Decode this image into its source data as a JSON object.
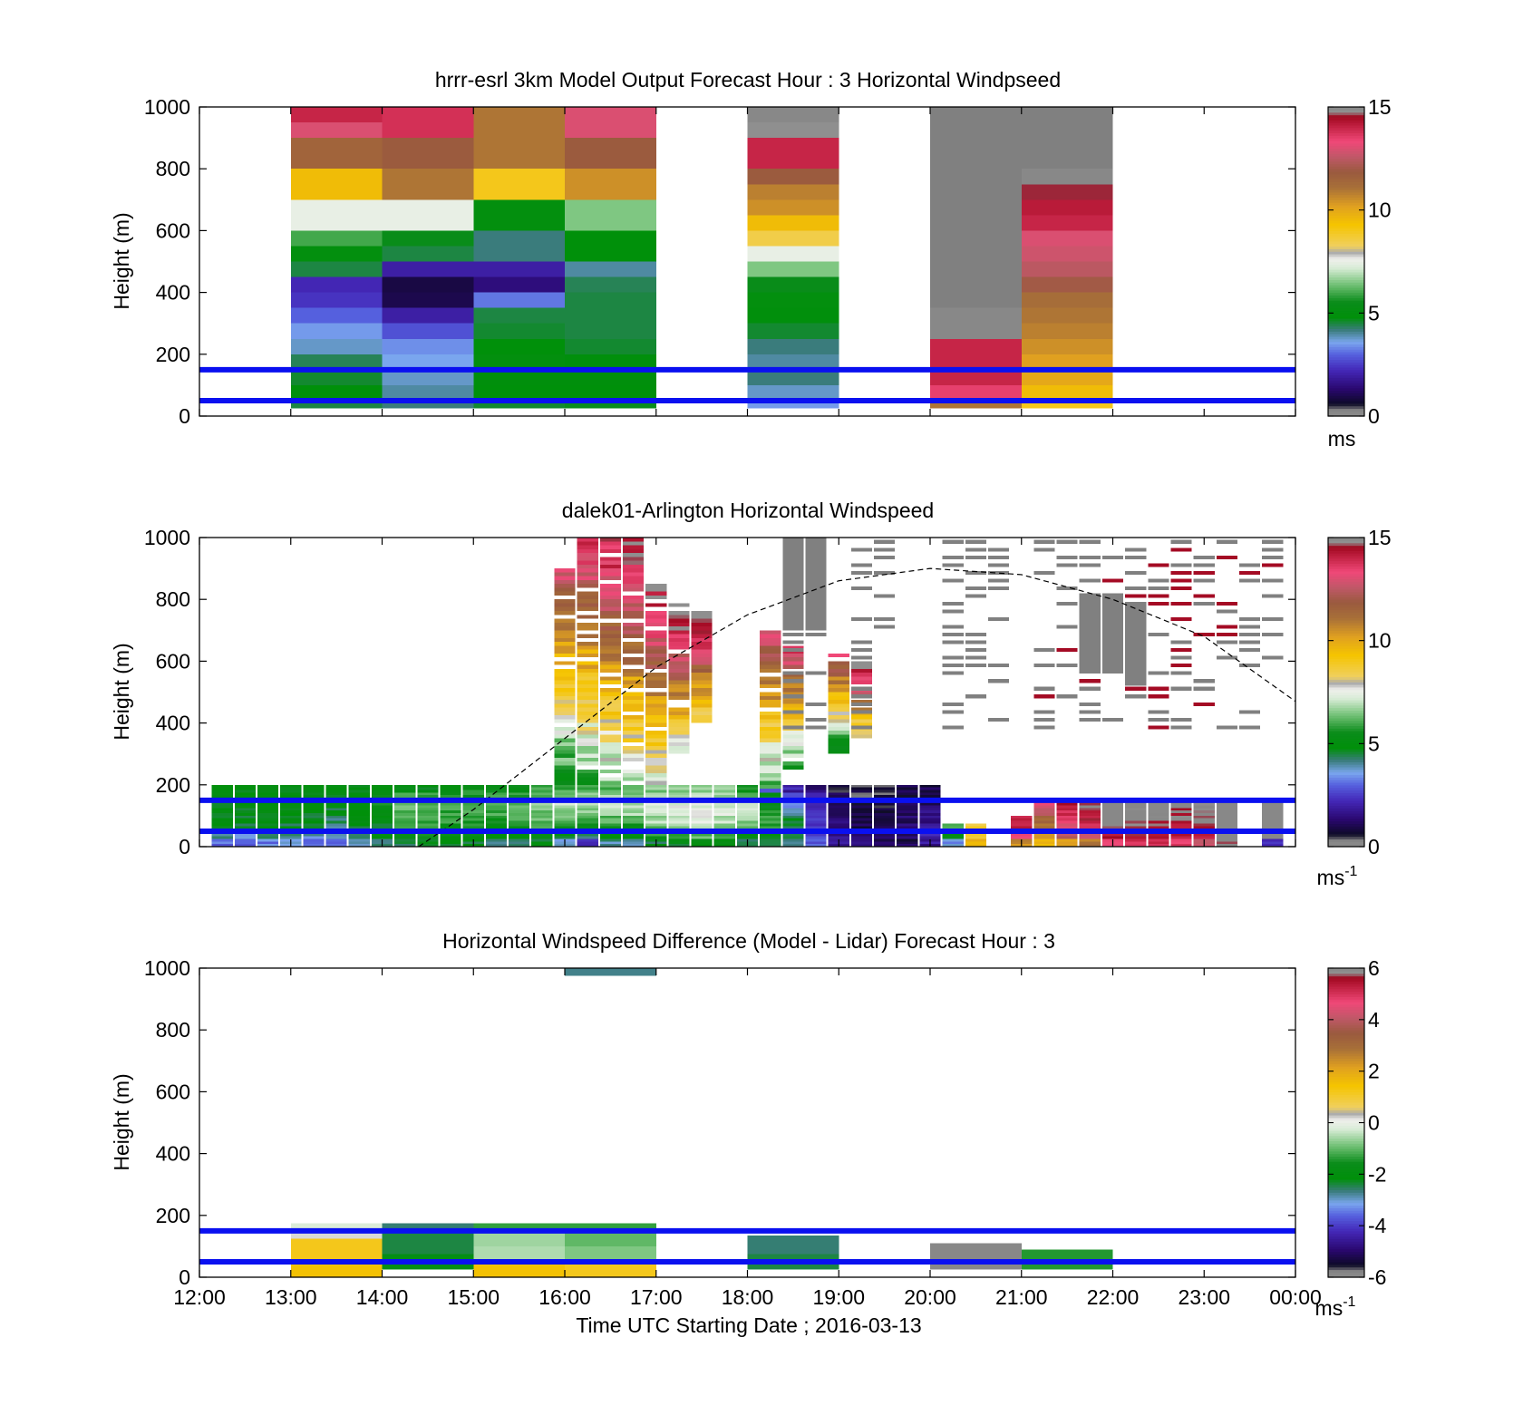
{
  "figure": {
    "xlabel": "Time UTC  Starting Date ; 2016-03-13"
  },
  "chart_data": [
    {
      "type": "heatmap",
      "title": "hrrr-esrl 3km Model Output   Forecast Hour : 3 Horizontal Windpseed",
      "xlabel": "",
      "ylabel": "Height (m)",
      "xlim": [
        12,
        24
      ],
      "ylim": [
        0,
        1000
      ],
      "x_ticks": [
        "12:00",
        "13:00",
        "14:00",
        "15:00",
        "16:00",
        "17:00",
        "18:00",
        "19:00",
        "20:00",
        "21:00",
        "22:00",
        "23:00",
        "00:00"
      ],
      "x_tick_labels_shown": false,
      "y_ticks": [
        0,
        200,
        400,
        600,
        800,
        1000
      ],
      "colorbar": {
        "min": 0,
        "max": 15,
        "ticks": [
          0,
          5,
          10,
          15
        ],
        "unit": "ms"
      },
      "bin_height_m": 50,
      "reference_lines_m": [
        50,
        150
      ],
      "columns": [
        {
          "time": 13.0,
          "ws": [
            4.5,
            4.8,
            4.6,
            4.4,
            3.8,
            3.5,
            3.0,
            2.4,
            2.2,
            4.5,
            5.0,
            6.0,
            7.5,
            7.5,
            9.5,
            9.5,
            11.5,
            11.5,
            13.0,
            14.0
          ]
        },
        {
          "time": 14.0,
          "ws": [
            4.2,
            4.0,
            3.8,
            3.6,
            3.4,
            2.8,
            2.0,
            1.0,
            0.9,
            2.0,
            4.5,
            5.5,
            7.5,
            7.5,
            11.0,
            11.0,
            11.8,
            11.8,
            13.8,
            13.8
          ]
        },
        {
          "time": 15.0,
          "ws": [
            4.6,
            4.8,
            4.9,
            5.0,
            4.8,
            4.6,
            4.5,
            3.2,
            1.5,
            2.0,
            4.2,
            4.2,
            5.0,
            5.0,
            9.0,
            9.0,
            11.0,
            11.0,
            11.0,
            11.0
          ]
        },
        {
          "time": 16.0,
          "ws": [
            4.7,
            4.8,
            4.9,
            4.9,
            4.6,
            4.5,
            4.5,
            4.5,
            4.4,
            4.0,
            4.8,
            4.8,
            6.5,
            6.5,
            10.5,
            10.5,
            11.8,
            11.8,
            13.0,
            13.0
          ]
        },
        {
          "time": 18.0,
          "ws": [
            3.5,
            3.8,
            4.2,
            4.0,
            4.2,
            4.6,
            4.9,
            5.0,
            5.5,
            6.5,
            7.5,
            8.5,
            9.5,
            10.5,
            10.8,
            11.8,
            14.0,
            14.0,
            14.8,
            15.5
          ]
        },
        {
          "time": 20.0,
          "ws": [
            11.0,
            13.5,
            14.0,
            14.0,
            14.0,
            15.0,
            15.0,
            null,
            null,
            null,
            null,
            null,
            null,
            null,
            null,
            null,
            null,
            null,
            null,
            null
          ]
        },
        {
          "time": 21.0,
          "ws": [
            9.0,
            9.5,
            10.0,
            10.2,
            10.5,
            10.8,
            11.0,
            11.2,
            12.0,
            12.5,
            12.8,
            13.0,
            14.0,
            14.2,
            14.6,
            15.0,
            null,
            null,
            null,
            null
          ]
        }
      ]
    },
    {
      "type": "heatmap",
      "title": "dalek01-Arlington  Horizontal Windspeed",
      "xlabel": "",
      "ylabel": "Height (m)",
      "xlim": [
        12,
        24
      ],
      "ylim": [
        0,
        1000
      ],
      "x_ticks": [
        "12:00",
        "13:00",
        "14:00",
        "15:00",
        "16:00",
        "17:00",
        "18:00",
        "19:00",
        "20:00",
        "21:00",
        "22:00",
        "23:00",
        "00:00"
      ],
      "x_tick_labels_shown": false,
      "y_ticks": [
        0,
        200,
        400,
        600,
        800,
        1000
      ],
      "colorbar": {
        "min": 0,
        "max": 15,
        "ticks": [
          0,
          5,
          10,
          15
        ],
        "unit": "ms-1"
      },
      "bin_height_m": 25,
      "reference_lines_m": [
        50,
        150
      ],
      "guide_curve": {
        "style": "dashed",
        "points": [
          [
            14.4,
            0
          ],
          [
            15.0,
            120
          ],
          [
            16.0,
            350
          ],
          [
            17.0,
            580
          ],
          [
            18.0,
            750
          ],
          [
            19.0,
            860
          ],
          [
            20.0,
            900
          ],
          [
            21.0,
            880
          ],
          [
            22.0,
            800
          ],
          [
            23.0,
            680
          ],
          [
            24.0,
            470
          ]
        ]
      },
      "columns": [
        {
          "time": 12.25,
          "bottom": [
            3.0,
            4.0,
            4.5,
            4.8,
            4.8,
            4.9,
            5.0,
            5.0
          ]
        },
        {
          "time": 12.5,
          "bottom": [
            2.8,
            3.8,
            4.5,
            4.7,
            4.9,
            5.0,
            5.0,
            5.0
          ]
        },
        {
          "time": 12.75,
          "bottom": [
            3.2,
            4.2,
            4.5,
            4.8,
            4.9,
            5.0,
            5.0,
            5.0
          ]
        },
        {
          "time": 13.0,
          "bottom": [
            3.5,
            4.0,
            4.6,
            4.8,
            4.9,
            5.0,
            5.0,
            5.0
          ]
        },
        {
          "time": 13.25,
          "bottom": [
            3.0,
            3.8,
            4.3,
            4.6,
            4.9,
            5.0,
            5.0,
            5.0
          ]
        },
        {
          "time": 13.5,
          "bottom": [
            3.2,
            3.6,
            4.0,
            4.2,
            4.6,
            5.0,
            5.0,
            5.0
          ]
        },
        {
          "time": 13.75,
          "bottom": [
            4.0,
            4.6,
            4.7,
            4.8,
            4.9,
            5.0,
            5.0,
            5.0
          ]
        },
        {
          "time": 14.0,
          "bottom": [
            4.5,
            4.8,
            4.9,
            5.0,
            5.3,
            5.5,
            5.5,
            5.0
          ]
        },
        {
          "time": 14.25,
          "bottom": [
            4.6,
            5.2,
            5.6,
            5.9,
            6.1,
            6.2,
            5.8,
            5.0
          ]
        },
        {
          "time": 14.5,
          "bottom": [
            4.8,
            5.3,
            5.7,
            6.0,
            6.3,
            6.3,
            5.8,
            5.0
          ]
        },
        {
          "time": 14.75,
          "bottom": [
            4.7,
            5.0,
            5.4,
            5.7,
            6.0,
            6.0,
            5.6,
            5.0
          ]
        },
        {
          "time": 15.0,
          "bottom": [
            4.5,
            5.0,
            5.5,
            5.8,
            6.0,
            6.1,
            5.7,
            5.5
          ]
        },
        {
          "time": 15.25,
          "bottom": [
            4.2,
            4.7,
            5.2,
            5.6,
            6.0,
            6.2,
            5.9,
            5.5
          ]
        },
        {
          "time": 15.5,
          "bottom": [
            4.5,
            5.0,
            5.5,
            5.9,
            6.3,
            6.4,
            6.0,
            5.5
          ]
        },
        {
          "time": 15.75,
          "bottom": [
            4.8,
            5.3,
            5.8,
            6.2,
            6.5,
            6.7,
            6.3,
            6.0
          ]
        },
        {
          "time": 16.0,
          "bottom": [
            3.5,
            4.8,
            5.7,
            6.3,
            6.7,
            6.9,
            6.4,
            6.0
          ]
        },
        {
          "time": 16.25,
          "bottom": [
            2.0,
            4.5,
            5.5,
            6.2,
            6.7,
            7.0,
            6.5,
            6.0
          ]
        },
        {
          "time": 16.5,
          "bottom": [
            4.0,
            4.8,
            5.6,
            6.2,
            6.8,
            7.0,
            6.6,
            6.0
          ]
        },
        {
          "time": 16.75,
          "bottom": [
            4.2,
            5.0,
            5.7,
            6.3,
            6.9,
            7.0,
            6.6,
            6.0
          ]
        },
        {
          "time": 17.0,
          "bottom": [
            4.6,
            5.6,
            6.2,
            6.8,
            7.2,
            7.3,
            6.8,
            6.5
          ]
        },
        {
          "time": 17.25,
          "bottom": [
            4.9,
            5.9,
            6.6,
            7.1,
            7.4,
            7.4,
            7.0,
            6.5
          ]
        },
        {
          "time": 17.5,
          "bottom": [
            5.2,
            6.2,
            6.9,
            7.4,
            7.6,
            7.5,
            7.1,
            6.5
          ]
        },
        {
          "time": 17.75,
          "bottom": [
            5.0,
            5.9,
            6.5,
            7.0,
            7.3,
            7.3,
            6.9,
            6.5
          ]
        },
        {
          "time": 18.0,
          "bottom": [
            4.6,
            5.5,
            6.2,
            6.6,
            6.9,
            6.8,
            6.3,
            5.5
          ]
        },
        {
          "time": 18.25,
          "bottom": [
            4.2,
            5.0,
            5.6,
            6.0,
            5.8,
            5.0,
            4.0,
            3.0
          ]
        },
        {
          "time": 18.5,
          "bottom": [
            3.8,
            4.2,
            4.5,
            4.6,
            4.2,
            3.5,
            2.5,
            2.0
          ]
        },
        {
          "time": 18.75,
          "bottom": [
            3.0,
            2.8,
            2.6,
            2.5,
            2.3,
            2.0,
            1.8,
            1.5
          ]
        },
        {
          "time": 19.0,
          "bottom": [
            1.8,
            1.6,
            1.5,
            1.4,
            1.3,
            1.1,
            0.9,
            0.8
          ]
        },
        {
          "time": 19.25,
          "bottom": [
            1.6,
            1.3,
            1.0,
            0.9,
            0.8,
            0.7,
            0.6,
            0.6
          ]
        },
        {
          "time": 19.5,
          "bottom": [
            1.2,
            1.0,
            1.0,
            0.9,
            0.8,
            0.7,
            0.6,
            0.5
          ]
        },
        {
          "time": 19.75,
          "bottom": [
            1.0,
            1.3,
            1.4,
            1.3,
            1.1,
            1.0,
            0.9,
            0.8
          ]
        },
        {
          "time": 20.0,
          "bottom": [
            1.8,
            2.2,
            2.0,
            1.6,
            1.4,
            1.2,
            1.0,
            0.9
          ]
        },
        {
          "time": 20.25,
          "bottom": [
            3.5,
            4.8,
            6.0,
            null,
            null,
            null,
            null,
            null
          ]
        },
        {
          "time": 20.5,
          "bottom": [
            9.5,
            9.0,
            8.6,
            null,
            null,
            null,
            null,
            null
          ]
        },
        {
          "time": 20.75,
          "bottom": [
            null,
            null,
            null,
            null,
            null,
            null,
            null,
            null
          ]
        },
        {
          "time": 21.0,
          "bottom": [
            10.5,
            13.5,
            14.0,
            14.0,
            null,
            null,
            null,
            null
          ]
        },
        {
          "time": 21.25,
          "bottom": [
            9.5,
            10.5,
            11.0,
            11.5,
            12.5,
            13.0,
            null,
            null
          ]
        },
        {
          "time": 21.5,
          "bottom": [
            10.2,
            12.5,
            13.0,
            13.5,
            14.0,
            14.2,
            null,
            null
          ]
        },
        {
          "time": 21.75,
          "bottom": [
            11.0,
            13.0,
            14.0,
            14.2,
            14.5,
            14.6,
            null,
            null
          ]
        },
        {
          "time": 22.0,
          "bottom": [
            13.5,
            14.5,
            15.0,
            15.5,
            15.6,
            15.6,
            null,
            null
          ]
        },
        {
          "time": 22.25,
          "bottom": [
            14.0,
            14.6,
            14.8,
            15.0,
            15.2,
            15.5,
            null,
            null
          ]
        },
        {
          "time": 22.5,
          "bottom": [
            13.8,
            14.2,
            14.5,
            14.8,
            15.0,
            15.6,
            null,
            null
          ]
        },
        {
          "time": 22.75,
          "bottom": [
            13.5,
            14.0,
            14.2,
            14.6,
            14.8,
            15.6,
            null,
            null
          ]
        },
        {
          "time": 23.0,
          "bottom": [
            13.0,
            14.3,
            14.6,
            14.9,
            15.0,
            15.1,
            null,
            null
          ]
        },
        {
          "time": 23.25,
          "bottom": [
            15.0,
            15.5,
            15.6,
            15.6,
            15.6,
            15.6,
            null,
            null
          ]
        },
        {
          "time": 23.5,
          "bottom": [
            null,
            null,
            null,
            null,
            null,
            null,
            null,
            null
          ]
        },
        {
          "time": 23.75,
          "bottom": [
            2.5,
            15.5,
            15.5,
            15.6,
            15.6,
            15.6,
            null,
            null
          ]
        }
      ]
    },
    {
      "type": "heatmap",
      "title": "Horizontal Windspeed Difference (Model - Lidar) Forecast Hour : 3",
      "xlabel": "Time UTC  Starting Date ; 2016-03-13",
      "ylabel": "Height (m)",
      "xlim": [
        12,
        24
      ],
      "ylim": [
        0,
        1000
      ],
      "x_ticks": [
        "12:00",
        "13:00",
        "14:00",
        "15:00",
        "16:00",
        "17:00",
        "18:00",
        "19:00",
        "20:00",
        "21:00",
        "22:00",
        "23:00",
        "00:00"
      ],
      "x_tick_labels_shown": true,
      "y_ticks": [
        0,
        200,
        400,
        600,
        800,
        1000
      ],
      "colorbar": {
        "min": -6,
        "max": 6,
        "ticks": [
          -6,
          -4,
          -2,
          0,
          2,
          4,
          6
        ],
        "unit": "ms-1"
      },
      "bin_height_m": 25,
      "reference_lines_m": [
        50,
        150
      ],
      "columns": [
        {
          "time": 13.0,
          "rows": [
            {
              "from": 0,
              "to": 50,
              "v": 1.5
            },
            {
              "from": 50,
              "to": 125,
              "v": 1.2
            },
            {
              "from": 125,
              "to": 150,
              "v": 0.2
            },
            {
              "from": 150,
              "to": 175,
              "v": -0.2
            }
          ]
        },
        {
          "time": 14.0,
          "rows": [
            {
              "from": 25,
              "to": 75,
              "v": -2.2
            },
            {
              "from": 75,
              "to": 150,
              "v": -2.4
            },
            {
              "from": 150,
              "to": 175,
              "v": -2.6
            }
          ]
        },
        {
          "time": 15.0,
          "rows": [
            {
              "from": 0,
              "to": 50,
              "v": 1.5
            },
            {
              "from": 50,
              "to": 100,
              "v": -0.5
            },
            {
              "from": 100,
              "to": 150,
              "v": -0.6
            },
            {
              "from": 150,
              "to": 175,
              "v": -1.3
            }
          ]
        },
        {
          "time": 16.0,
          "rows": [
            {
              "from": 0,
              "to": 50,
              "v": 1.2
            },
            {
              "from": 50,
              "to": 100,
              "v": -0.8
            },
            {
              "from": 100,
              "to": 150,
              "v": -1.0
            },
            {
              "from": 150,
              "to": 175,
              "v": -1.3
            },
            {
              "from": 975,
              "to": 1000,
              "v": -2.7
            }
          ]
        },
        {
          "time": 18.0,
          "rows": [
            {
              "from": 25,
              "to": 75,
              "v": -2.4
            },
            {
              "from": 75,
              "to": 135,
              "v": -2.6
            }
          ]
        },
        {
          "time": 20.0,
          "rows": [
            {
              "from": 25,
              "to": 75,
              "v": 6.0
            },
            {
              "from": 75,
              "to": 110,
              "v": 6.0
            }
          ]
        },
        {
          "time": 21.0,
          "rows": [
            {
              "from": 25,
              "to": 75,
              "v": -1.4
            },
            {
              "from": 75,
              "to": 90,
              "v": -1.4
            }
          ]
        }
      ]
    }
  ]
}
